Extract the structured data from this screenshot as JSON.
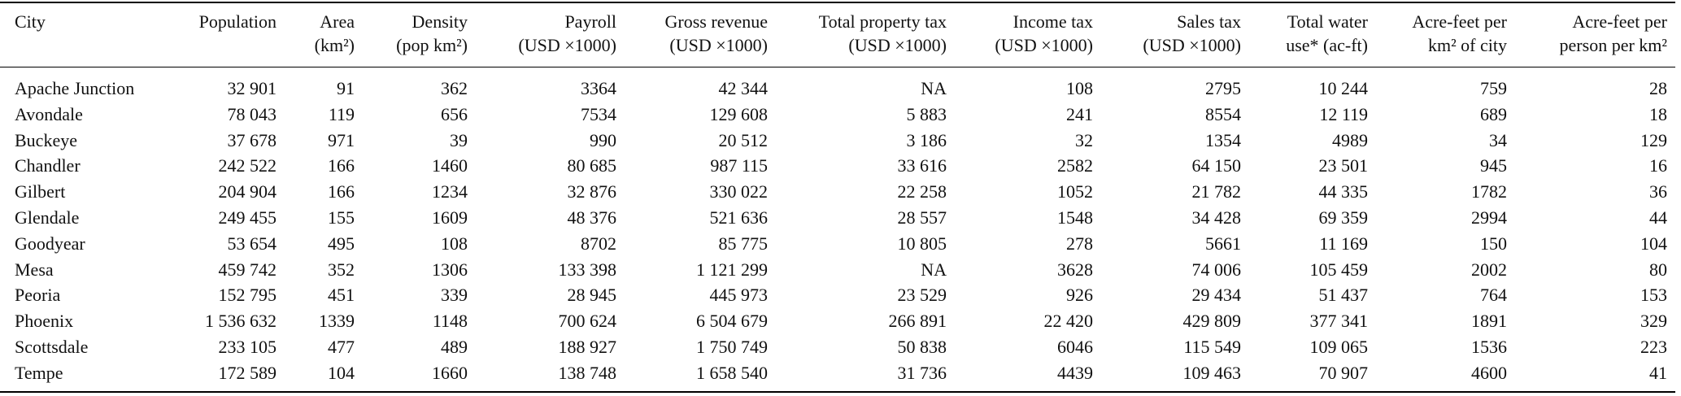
{
  "table": {
    "header": [
      [
        "City"
      ],
      [
        "Population"
      ],
      [
        "Area",
        "(km²)"
      ],
      [
        "Density",
        "(pop km²)"
      ],
      [
        "Payroll",
        "(USD ×1000)"
      ],
      [
        "Gross revenue",
        "(USD ×1000)"
      ],
      [
        "Total property tax",
        "(USD ×1000)"
      ],
      [
        "Income tax",
        "(USD ×1000)"
      ],
      [
        "Sales tax",
        "(USD ×1000)"
      ],
      [
        "Total water",
        "use* (ac-ft)"
      ],
      [
        "Acre-feet per",
        "km² of city"
      ],
      [
        "Acre-feet per",
        "person per km²"
      ]
    ],
    "rows": [
      [
        "Apache Junction",
        "32 901",
        "91",
        "362",
        "3364",
        "42 344",
        "NA",
        "108",
        "2795",
        "10 244",
        "759",
        "28"
      ],
      [
        "Avondale",
        "78 043",
        "119",
        "656",
        "7534",
        "129 608",
        "5 883",
        "241",
        "8554",
        "12 119",
        "689",
        "18"
      ],
      [
        "Buckeye",
        "37 678",
        "971",
        "39",
        "990",
        "20 512",
        "3 186",
        "32",
        "1354",
        "4989",
        "34",
        "129"
      ],
      [
        "Chandler",
        "242 522",
        "166",
        "1460",
        "80 685",
        "987 115",
        "33 616",
        "2582",
        "64 150",
        "23 501",
        "945",
        "16"
      ],
      [
        "Gilbert",
        "204 904",
        "166",
        "1234",
        "32 876",
        "330 022",
        "22 258",
        "1052",
        "21 782",
        "44 335",
        "1782",
        "36"
      ],
      [
        "Glendale",
        "249 455",
        "155",
        "1609",
        "48 376",
        "521 636",
        "28 557",
        "1548",
        "34 428",
        "69 359",
        "2994",
        "44"
      ],
      [
        "Goodyear",
        "53 654",
        "495",
        "108",
        "8702",
        "85 775",
        "10 805",
        "278",
        "5661",
        "11 169",
        "150",
        "104"
      ],
      [
        "Mesa",
        "459 742",
        "352",
        "1306",
        "133 398",
        "1 121 299",
        "NA",
        "3628",
        "74 006",
        "105 459",
        "2002",
        "80"
      ],
      [
        "Peoria",
        "152 795",
        "451",
        "339",
        "28 945",
        "445 973",
        "23 529",
        "926",
        "29 434",
        "51 437",
        "764",
        "153"
      ],
      [
        "Phoenix",
        "1 536 632",
        "1339",
        "1148",
        "700 624",
        "6 504 679",
        "266 891",
        "22 420",
        "429 809",
        "377 341",
        "1891",
        "329"
      ],
      [
        "Scottsdale",
        "233 105",
        "477",
        "489",
        "188 927",
        "1 750 749",
        "50 838",
        "6046",
        "115 549",
        "109 065",
        "1536",
        "223"
      ],
      [
        "Tempe",
        "172 589",
        "104",
        "1660",
        "138 748",
        "1 658 540",
        "31 736",
        "4439",
        "109 463",
        "70 907",
        "4600",
        "41"
      ]
    ]
  }
}
